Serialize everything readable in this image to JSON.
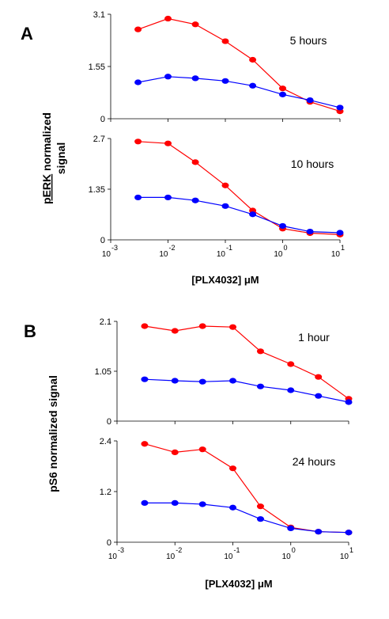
{
  "panel_letters": [
    "A",
    "B"
  ],
  "panel_a": {
    "ylabel_emphasis": "pERK",
    "ylabel_rest": " normalized",
    "ylabel_line2": "signal",
    "xlabel": "[PLX4032] μM"
  },
  "panel_b": {
    "ylabel": "pS6 normalized signal",
    "xlabel": "[PLX4032] μM"
  },
  "colors": {
    "series1": "#ff0000",
    "series2": "#0000ff"
  },
  "chart_data": [
    {
      "type": "line",
      "panel": "A",
      "annotation": "5 hours",
      "x": [
        0.003,
        0.01,
        0.03,
        0.1,
        0.3,
        1,
        3,
        10
      ],
      "x_scale": "log",
      "xlim": [
        0.001,
        10
      ],
      "series": [
        {
          "color": "#ff0000",
          "values": [
            2.65,
            2.97,
            2.8,
            2.3,
            1.75,
            0.9,
            0.5,
            0.22
          ]
        },
        {
          "color": "#0000ff",
          "values": [
            1.08,
            1.25,
            1.2,
            1.12,
            0.98,
            0.72,
            0.55,
            0.33
          ]
        }
      ],
      "ylim": [
        0,
        3.1
      ],
      "yticks": [
        "0",
        "1.55",
        "3.1"
      ],
      "xtick_labels": []
    },
    {
      "type": "line",
      "panel": "A",
      "annotation": "10 hours",
      "x": [
        0.003,
        0.01,
        0.03,
        0.1,
        0.3,
        1,
        3,
        10
      ],
      "x_scale": "log",
      "xlim": [
        0.001,
        10
      ],
      "series": [
        {
          "color": "#ff0000",
          "values": [
            2.62,
            2.57,
            2.07,
            1.45,
            0.78,
            0.3,
            0.18,
            0.14
          ]
        },
        {
          "color": "#0000ff",
          "values": [
            1.13,
            1.13,
            1.05,
            0.9,
            0.68,
            0.37,
            0.22,
            0.19
          ]
        }
      ],
      "ylim": [
        0,
        2.7
      ],
      "yticks": [
        "0",
        "1.35",
        "2.7"
      ],
      "xtick_labels": [
        {
          "base": "10",
          "exp": "-3"
        },
        {
          "base": "10",
          "exp": "-2"
        },
        {
          "base": "10",
          "exp": "-1"
        },
        {
          "base": "10",
          "exp": "0"
        },
        {
          "base": "10",
          "exp": "1"
        }
      ]
    },
    {
      "type": "line",
      "panel": "B",
      "annotation": "1 hour",
      "x": [
        0.003,
        0.01,
        0.03,
        0.1,
        0.3,
        1,
        3,
        10
      ],
      "x_scale": "log",
      "xlim": [
        0.001,
        10
      ],
      "series": [
        {
          "color": "#ff0000",
          "values": [
            2.0,
            1.9,
            2.0,
            1.98,
            1.47,
            1.2,
            0.93,
            0.47
          ]
        },
        {
          "color": "#0000ff",
          "values": [
            0.88,
            0.85,
            0.83,
            0.85,
            0.73,
            0.65,
            0.53,
            0.4
          ]
        }
      ],
      "ylim": [
        0,
        2.1
      ],
      "yticks": [
        "0",
        "1.05",
        "2.1"
      ],
      "xtick_labels": []
    },
    {
      "type": "line",
      "panel": "B",
      "annotation": "24 hours",
      "x": [
        0.003,
        0.01,
        0.03,
        0.1,
        0.3,
        1,
        3,
        10
      ],
      "x_scale": "log",
      "xlim": [
        0.001,
        10
      ],
      "series": [
        {
          "color": "#ff0000",
          "values": [
            2.33,
            2.13,
            2.2,
            1.75,
            0.85,
            0.35,
            0.25,
            0.23
          ]
        },
        {
          "color": "#0000ff",
          "values": [
            0.93,
            0.93,
            0.9,
            0.82,
            0.55,
            0.33,
            0.25,
            0.23
          ]
        }
      ],
      "ylim": [
        0,
        2.4
      ],
      "yticks": [
        "0",
        "1.2",
        "2.4"
      ],
      "xtick_labels": [
        {
          "base": "10",
          "exp": "-3"
        },
        {
          "base": "10",
          "exp": "-2"
        },
        {
          "base": "10",
          "exp": "-1"
        },
        {
          "base": "10",
          "exp": "0"
        },
        {
          "base": "10",
          "exp": "1"
        }
      ]
    }
  ]
}
